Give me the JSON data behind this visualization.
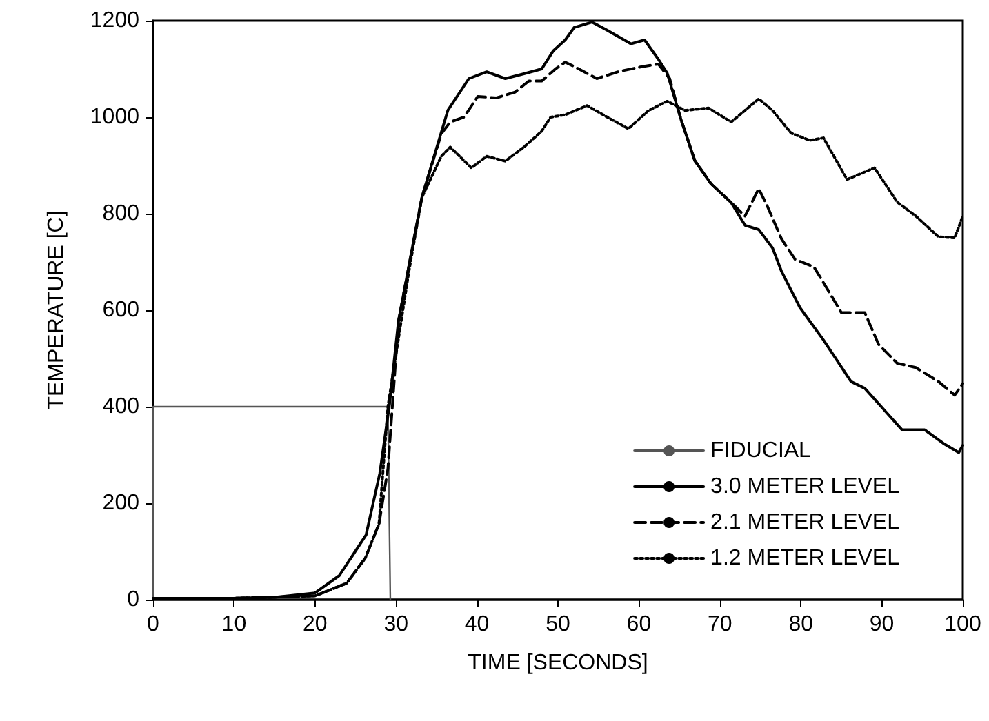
{
  "chart_data": {
    "type": "line",
    "xlabel": "TIME [SECONDS]",
    "ylabel": "TEMPERATURE [C]",
    "xlim": [
      0,
      100
    ],
    "xticks": [
      0,
      10,
      20,
      30,
      40,
      50,
      60,
      70,
      80,
      90,
      100
    ],
    "ylim": [
      0,
      1200
    ],
    "yticks": [
      0,
      200,
      400,
      600,
      800,
      1000,
      1200
    ],
    "grid": false,
    "legend": "bottom right",
    "marker": "none",
    "series": [
      {
        "name": "FIDUCIAL",
        "color": "#555555",
        "line_style": "solid",
        "x": [
          0,
          0,
          28.5,
          29,
          29.3
        ],
        "values": [
          0,
          400,
          400,
          400,
          0
        ]
      },
      {
        "name": "3.0 METER LEVEL",
        "color": "#000000",
        "line_style": "solid",
        "x": [
          0,
          10,
          15,
          20,
          23,
          26.3,
          28,
          29.2,
          30.3,
          33.2,
          36.4,
          39,
          41.2,
          43.5,
          45.8,
          48,
          49.4,
          50.9,
          52,
          54.2,
          56.1,
          59,
          60.7,
          62.4,
          63.5,
          65.2,
          66.9,
          68.9,
          71.4,
          73.1,
          74.8,
          76.5,
          77.6,
          79.9,
          82.8,
          86.2,
          87.9,
          90.2,
          92.5,
          95.3,
          97.6,
          99.5,
          100
        ],
        "values": [
          3,
          3,
          5,
          14,
          50,
          134,
          262,
          405,
          577,
          834,
          1014,
          1080,
          1094,
          1080,
          1090,
          1100,
          1137,
          1160,
          1186,
          1197,
          1180,
          1152,
          1160,
          1120,
          1091,
          995,
          910,
          862,
          823,
          776,
          767,
          729,
          681,
          605,
          538,
          452,
          438,
          395,
          352,
          352,
          324,
          305,
          320
        ]
      },
      {
        "name": "2.1 METER LEVEL",
        "color": "#000000",
        "line_style": "dashed",
        "x": [
          0,
          10,
          20,
          23.9,
          26.2,
          27.9,
          29,
          30.3,
          33.2,
          35.6,
          36.7,
          38.4,
          40.1,
          42.4,
          44.7,
          46.4,
          48,
          49.7,
          50.9,
          52,
          54.8,
          57.6,
          60.5,
          62.4,
          63.8,
          65.2,
          66.9,
          68.9,
          71.4,
          73.1,
          74.8,
          75.9,
          77.6,
          79.3,
          81.6,
          83.3,
          85,
          87.9,
          89.6,
          91.9,
          94.2,
          97,
          99,
          100
        ],
        "values": [
          3,
          3,
          8,
          34,
          86,
          157,
          271,
          577,
          834,
          966,
          990,
          1000,
          1043,
          1040,
          1052,
          1075,
          1075,
          1100,
          1114,
          1105,
          1080,
          1095,
          1105,
          1110,
          1080,
          995,
          910,
          862,
          823,
          795,
          852,
          814,
          748,
          705,
          690,
          643,
          595,
          595,
          529,
          490,
          481,
          452,
          424,
          448
        ]
      },
      {
        "name": "1.2 METER LEVEL",
        "color": "#000000",
        "line_style": "dotted",
        "x": [
          0,
          10,
          20,
          23.9,
          26.2,
          27.9,
          29,
          31.6,
          33.2,
          35.6,
          36.7,
          39.3,
          41.2,
          43.5,
          45.8,
          48,
          49.1,
          50.9,
          53.6,
          56.1,
          58.7,
          61.2,
          63.5,
          65.7,
          68.6,
          71.4,
          74.8,
          76.5,
          78.8,
          81.1,
          82.8,
          85.7,
          89.1,
          91.9,
          94.2,
          97,
          99,
          100
        ],
        "values": [
          3,
          3,
          8,
          34,
          86,
          157,
          400,
          681,
          834,
          919,
          938,
          895,
          919,
          909,
          938,
          971,
          1000,
          1005,
          1024,
          1000,
          976,
          1014,
          1033,
          1014,
          1019,
          990,
          1038,
          1014,
          967,
          952,
          957,
          871,
          895,
          824,
          795,
          752,
          750,
          795
        ]
      }
    ]
  }
}
